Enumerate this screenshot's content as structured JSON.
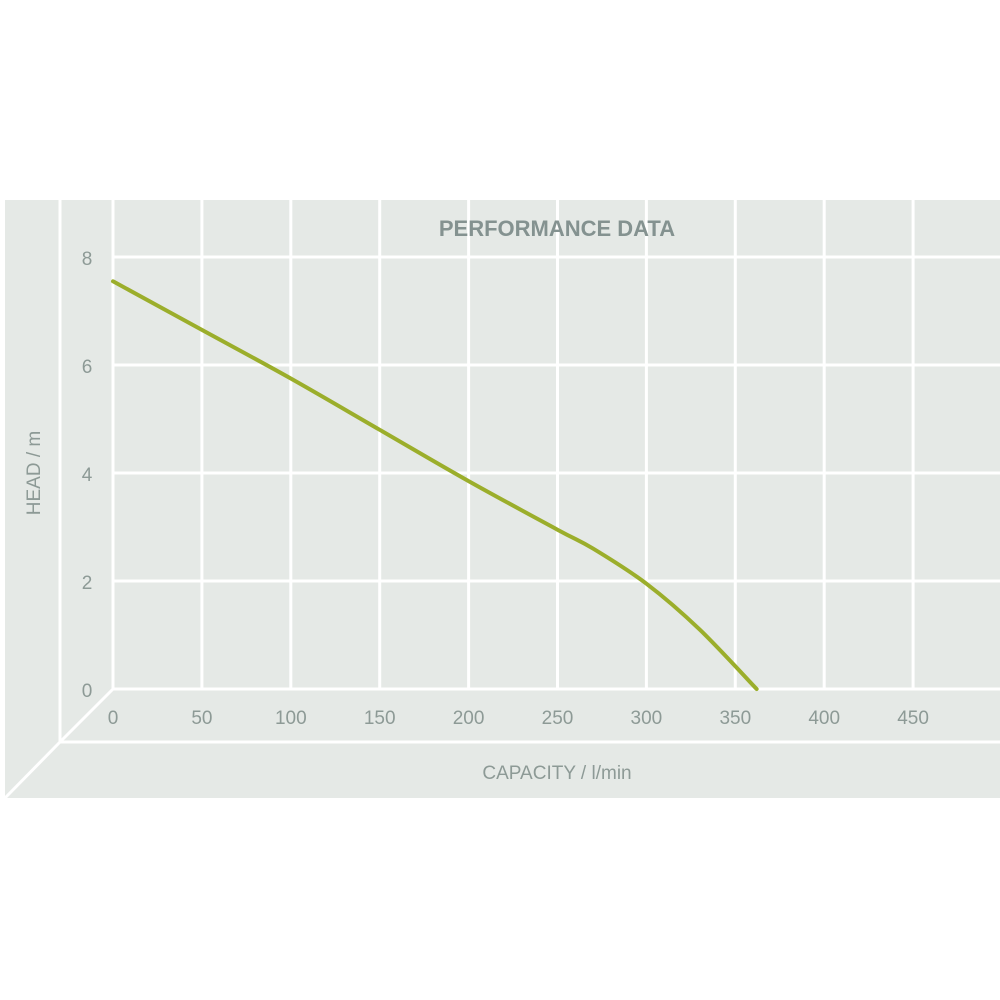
{
  "chart_data": {
    "type": "line",
    "title": "PERFORMANCE DATA",
    "xlabel": "CAPACITY / l/min",
    "ylabel": "HEAD / m",
    "xlim": [
      0,
      500
    ],
    "ylim": [
      0,
      8
    ],
    "xticks": [
      0,
      50,
      100,
      150,
      200,
      250,
      300,
      350,
      400,
      450
    ],
    "yticks": [
      0,
      2,
      4,
      6,
      8
    ],
    "grid": true,
    "series": [
      {
        "x": [
          0,
          50,
          100,
          150,
          200,
          250,
          270,
          300,
          330,
          362
        ],
        "y": [
          7.55,
          6.65,
          5.75,
          4.8,
          3.85,
          2.95,
          2.6,
          1.95,
          1.1,
          0
        ]
      }
    ]
  },
  "colors": {
    "background": "#e5e9e6",
    "grid": "#ffffff",
    "line": "#9bae2b",
    "text": "#8d9a96",
    "title": "#849290"
  }
}
